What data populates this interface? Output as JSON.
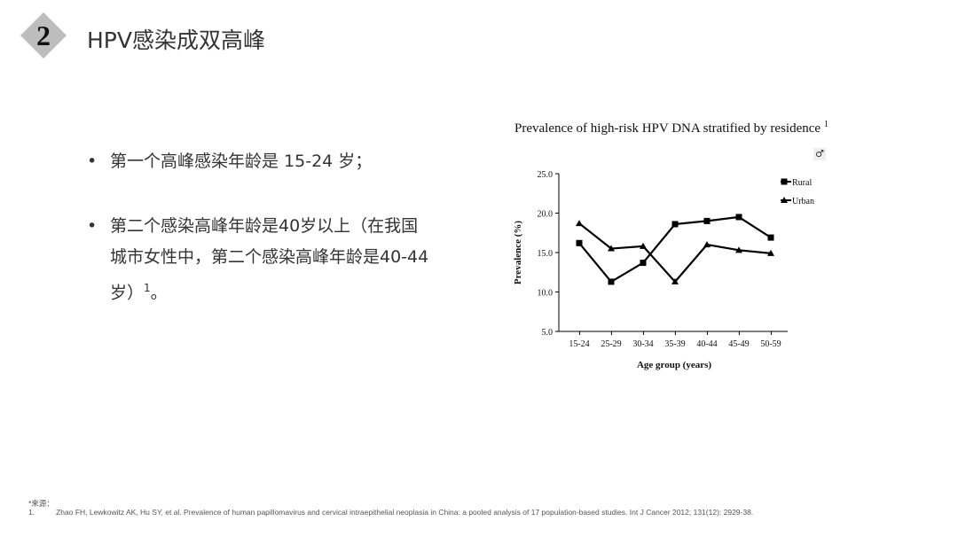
{
  "slide": {
    "number": "2",
    "title": "HPV感染成双高峰",
    "bullets": [
      {
        "symbol": "•",
        "text": "第一个高峰感染年龄是 15-24 岁；"
      },
      {
        "symbol": "•",
        "text": "第二个感染高峰年龄是40岁以上（在我国城市女性中，第二个感染高峰年龄是40-44岁）",
        "sup": "1",
        "tail": "。"
      }
    ],
    "footnote_label": "*来源：",
    "footnote_num": "1.",
    "footnote_text": "Zhao FH, Lewkowitz AK, Hu SY, et al. Prevalence of human papillomavirus and cervical intraepithelial neoplasia in China: a pooled analysis of 17 population-based studies. Int J Cancer 2012; 131(12): 2929-38."
  },
  "icons": {
    "male": "♂"
  },
  "chart_data": {
    "type": "line",
    "title": "Prevalence of high-risk HPV DNA stratified by residence",
    "title_sup": "1",
    "xlabel": "Age group (years)",
    "ylabel": "Prevalence (%)",
    "categories": [
      "15-24",
      "25-29",
      "30-34",
      "35-39",
      "40-44",
      "45-49",
      "50-59"
    ],
    "ylim": [
      5.0,
      25.0
    ],
    "yticks": [
      "5.0",
      "10.0",
      "15.0",
      "20.0",
      "25.0"
    ],
    "grid": false,
    "legend_position": "top-right",
    "series": [
      {
        "name": "Rural",
        "marker": "square",
        "values": [
          16.2,
          11.3,
          13.7,
          18.6,
          19.0,
          19.5,
          16.9
        ]
      },
      {
        "name": "Urban",
        "marker": "triangle",
        "values": [
          18.7,
          15.5,
          15.8,
          11.3,
          16.0,
          15.3,
          14.9
        ]
      }
    ],
    "color": "#000000"
  }
}
